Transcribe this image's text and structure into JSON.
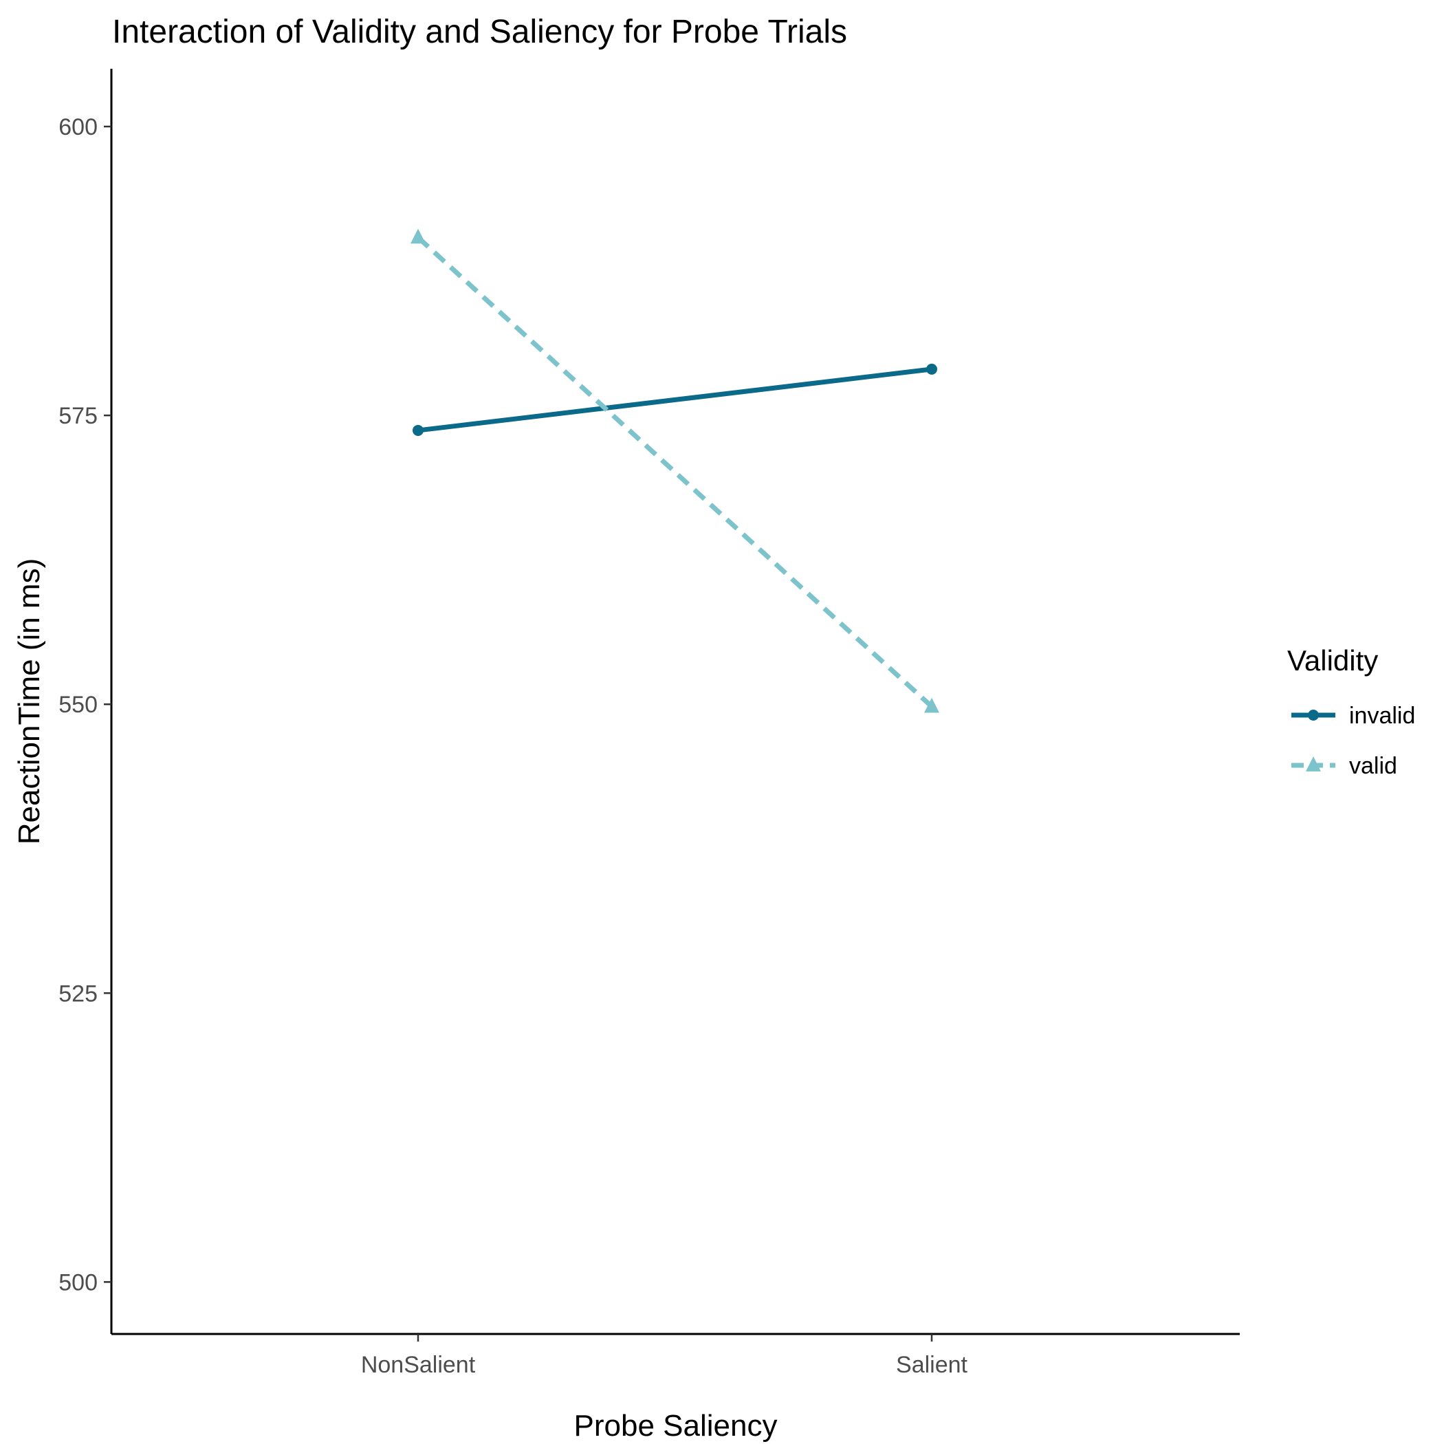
{
  "chart_data": {
    "type": "line",
    "title": "Interaction of Validity and Saliency for Probe Trials",
    "xlabel": "Probe Saliency",
    "ylabel": "ReactionTime (in ms)",
    "categories": [
      "NonSalient",
      "Salient"
    ],
    "ylim": [
      495.5,
      605
    ],
    "yticks": [
      500,
      525,
      550,
      575,
      600
    ],
    "grid": false,
    "legend": {
      "title": "Validity",
      "placement": "right"
    },
    "series": [
      {
        "name": "invalid",
        "values": [
          573.7,
          579.0
        ],
        "color": "#0b6a8a",
        "line_style": "solid",
        "marker": "circle"
      },
      {
        "name": "valid",
        "values": [
          590.4,
          549.8
        ],
        "color": "#7cc3cb",
        "line_style": "dashed",
        "marker": "triangle"
      }
    ]
  }
}
